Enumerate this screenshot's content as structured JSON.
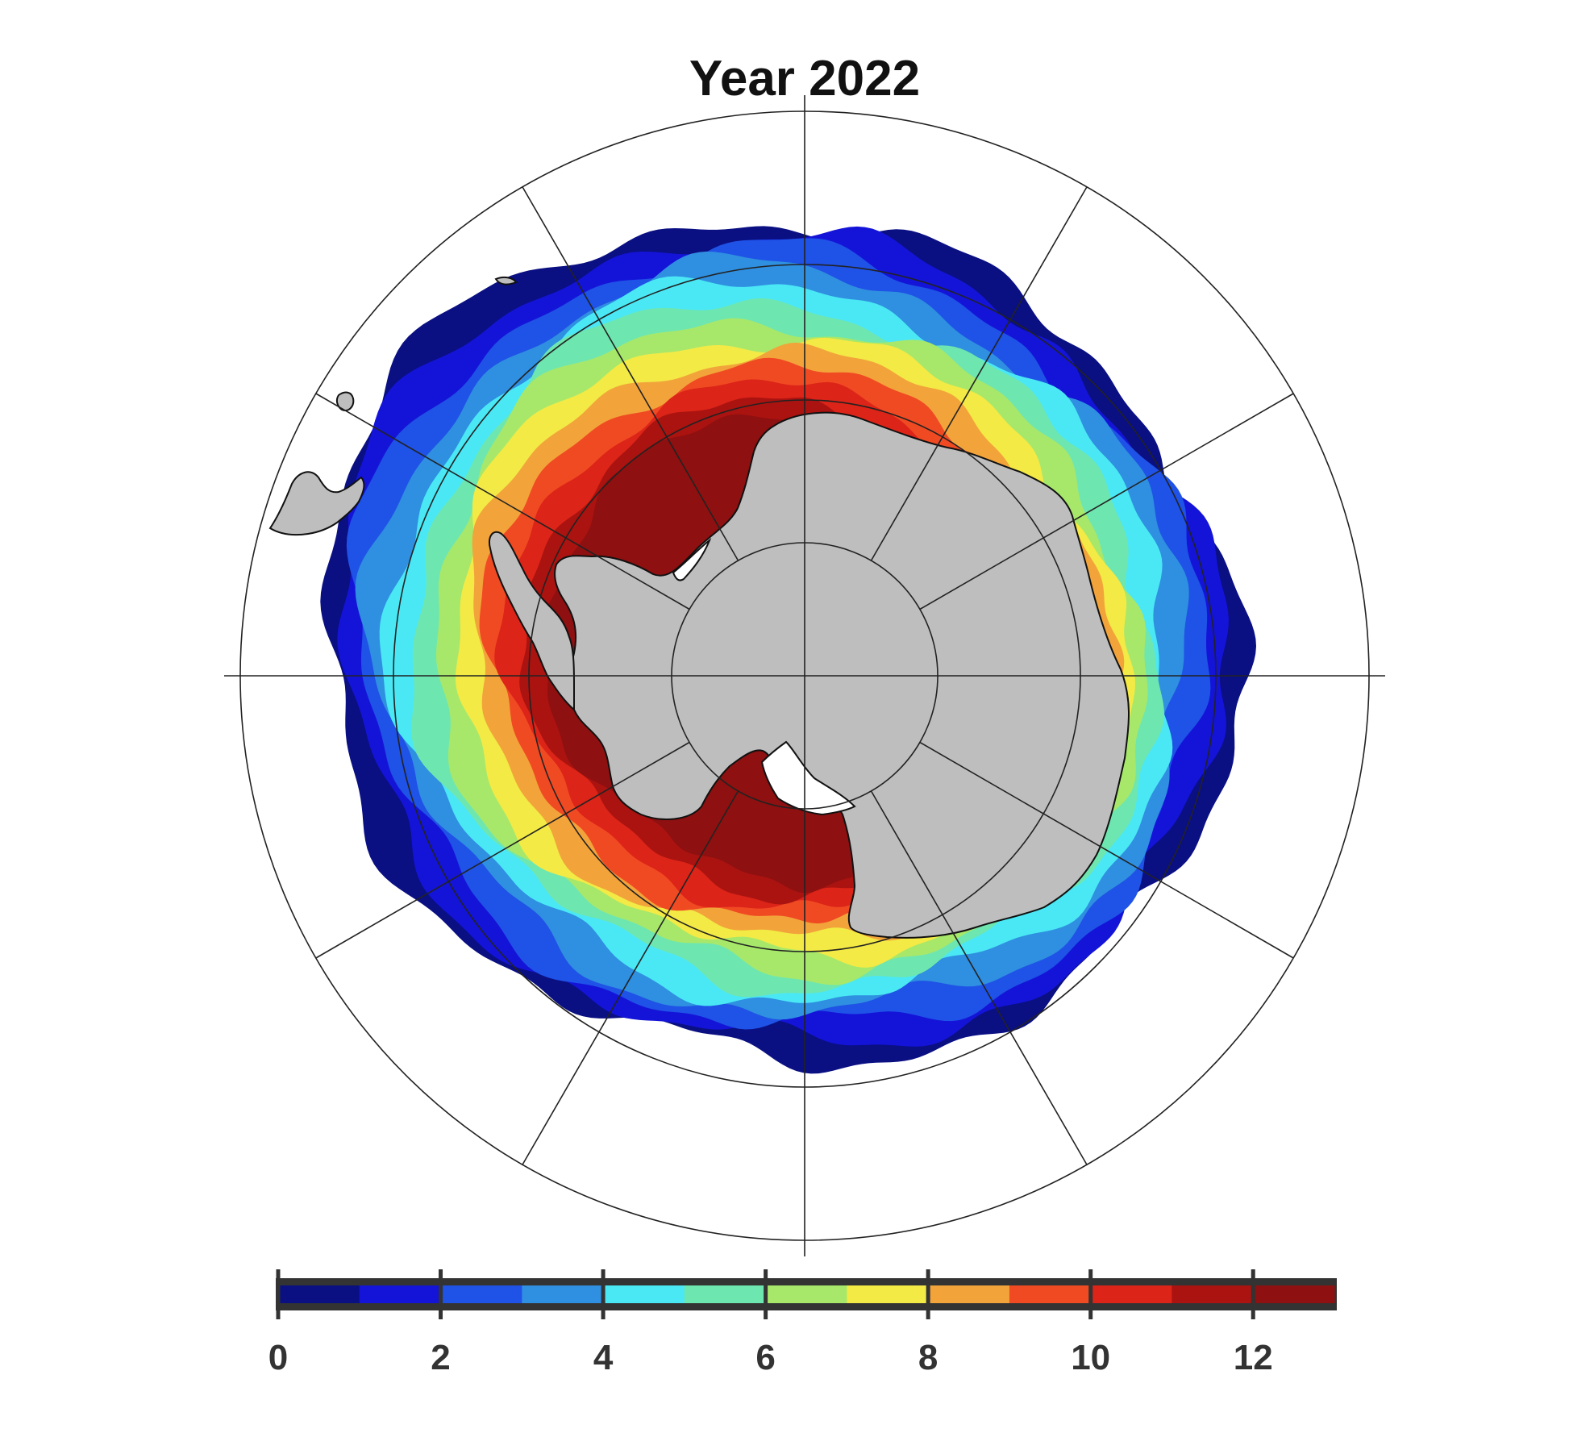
{
  "map": {
    "title": "Year 2022",
    "projection": "south-polar-stereographic",
    "land_color": "#bebebe",
    "ocean_color": "#ffffff",
    "graticule_color": "#222222",
    "colormap": "jet",
    "colorbar": {
      "min": 0,
      "max": 13,
      "step": 1,
      "tick_labels": [
        "0",
        "2",
        "4",
        "6",
        "8",
        "10",
        "12"
      ],
      "bin_colors": [
        "#0a0f82",
        "#1414d8",
        "#1f52e6",
        "#2f8fe0",
        "#4ae8f5",
        "#6ee6b0",
        "#a7e86a",
        "#f3ea45",
        "#f2a43a",
        "#f04a23",
        "#dc2418",
        "#aa1310",
        "#8e1010"
      ]
    }
  }
}
